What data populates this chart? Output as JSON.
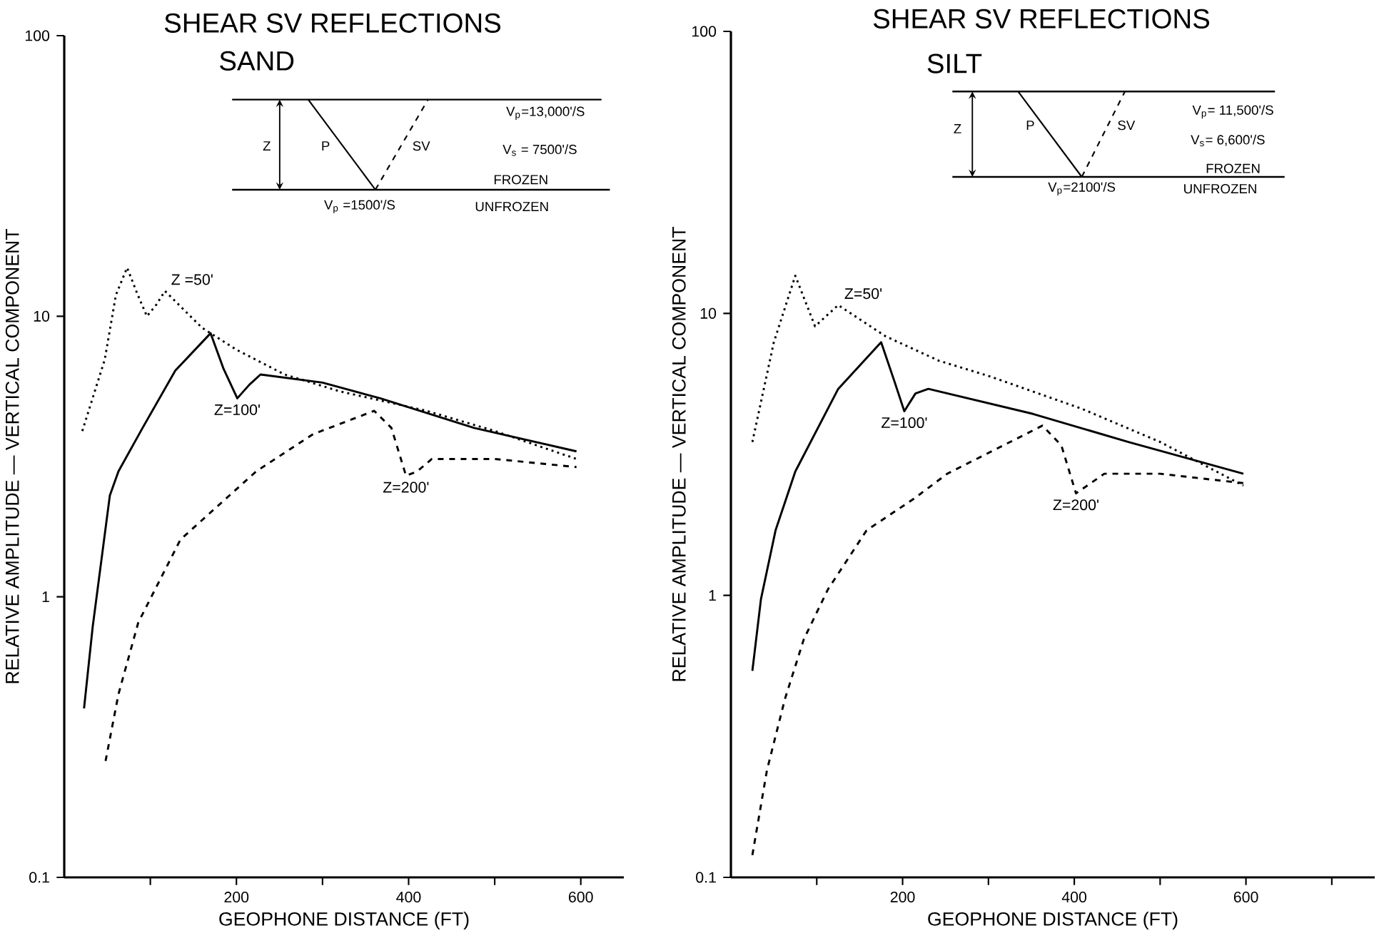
{
  "chart_data": [
    {
      "type": "line",
      "title": "SHEAR SV REFLECTIONS",
      "subtitle": "SAND",
      "xlabel": "GEOPHONE DISTANCE (FT)",
      "ylabel": "RELATIVE AMPLITUDE — VERTICAL COMPONENT",
      "log": "y",
      "xlim": [
        0,
        650
      ],
      "ylim": [
        0.1,
        100
      ],
      "xticks": [
        {
          "value": 100,
          "label": null
        },
        200,
        {
          "value": 300,
          "label": null
        },
        400,
        {
          "value": 500,
          "label": null
        },
        600
      ],
      "yticks": [
        0.1,
        1,
        10,
        100
      ],
      "series": [
        {
          "color": "#000000",
          "line_style": "dotted",
          "x": [
            21,
            47,
            60,
            73,
            85,
            96,
            107,
            117,
            160,
            200,
            256,
            320,
            421,
            500,
            595
          ],
          "values": [
            3.9,
            7,
            11.9,
            14.9,
            12,
            10,
            11,
            12.3,
            9.1,
            7.6,
            6.2,
            5.4,
            4.6,
            3.9,
            3.1
          ]
        },
        {
          "color": "#000000",
          "line_style": "solid",
          "x": [
            23,
            33,
            53,
            63,
            91,
            129,
            170,
            185,
            201,
            215,
            228,
            300,
            367,
            476,
            595
          ],
          "values": [
            0.4,
            0.78,
            2.3,
            2.8,
            4,
            6.4,
            8.7,
            6.5,
            5.1,
            5.7,
            6.2,
            5.8,
            5.1,
            4,
            3.3
          ]
        },
        {
          "color": "#000000",
          "line_style": "dashed",
          "x": [
            48,
            63,
            86,
            135,
            223,
            289,
            360,
            380,
            397,
            410,
            427,
            500,
            595
          ],
          "values": [
            0.26,
            0.45,
            0.81,
            1.6,
            2.8,
            3.8,
            4.6,
            4,
            2.7,
            2.8,
            3.1,
            3.1,
            2.9
          ]
        }
      ],
      "annotations": [
        "Z",
        "P",
        "SV",
        "V$_{p}$=13,000'/S",
        "V$_{s}$ = 7500'/S",
        "FROZEN",
        "UNFROZEN",
        "V$_{p}$ =1500'/S",
        {
          "text": "Z =50'",
          "x": 117,
          "y": 12.3
        },
        {
          "text": "Z=100'",
          "x": 201,
          "y": 5.1
        },
        {
          "text": "Z=200'",
          "x": 397,
          "y": 2.7
        }
      ]
    },
    {
      "type": "line",
      "title": "SHEAR SV REFLECTIONS",
      "subtitle": "SILT",
      "xlabel": "GEOPHONE DISTANCE (FT)",
      "ylabel": "RELATIVE AMPLITUDE — VERTICAL COMPONENT",
      "log": "y",
      "xlim": [
        0,
        750
      ],
      "ylim": [
        0.1,
        100
      ],
      "xticks": [
        {
          "value": 100,
          "label": null
        },
        200,
        {
          "value": 300,
          "label": null
        },
        400,
        {
          "value": 500,
          "label": null
        },
        600,
        {
          "value": 700,
          "label": null
        }
      ],
      "yticks": [
        0.1,
        1,
        10,
        100
      ],
      "series": [
        {
          "color": "#000000",
          "line_style": "dotted",
          "x": [
            25,
            50,
            75,
            98,
            125,
            180,
            242,
            300,
            408,
            500,
            597
          ],
          "values": [
            3.5,
            7.9,
            13.6,
            9,
            10.7,
            8.3,
            6.8,
            6,
            4.6,
            3.5,
            2.45
          ]
        },
        {
          "color": "#000000",
          "line_style": "solid",
          "x": [
            25,
            35,
            52,
            75,
            125,
            175,
            190,
            202,
            215,
            230,
            352,
            463,
            597
          ],
          "values": [
            0.54,
            0.97,
            1.7,
            2.75,
            5.4,
            7.9,
            5.8,
            4.5,
            5.2,
            5.4,
            4.4,
            3.5,
            2.7
          ]
        },
        {
          "color": "#000000",
          "line_style": "dashed",
          "x": [
            25,
            42,
            63,
            85,
            113,
            158,
            213,
            252,
            363,
            385,
            402,
            435,
            500,
            597
          ],
          "values": [
            0.12,
            0.24,
            0.43,
            0.7,
            1.05,
            1.7,
            2.2,
            2.7,
            4,
            3.4,
            2.3,
            2.7,
            2.7,
            2.5
          ]
        }
      ],
      "annotations": [
        "Z",
        "P",
        "SV",
        "V$_{p}$= 11,500'/S",
        "V$_{s}$= 6,600'/S",
        "FROZEN",
        "UNFROZEN",
        "V$_{p}$=2100'/S",
        {
          "text": "Z=50'",
          "x": 125,
          "y": 10.7
        },
        {
          "text": "Z=100'",
          "x": 202,
          "y": 4.5
        },
        {
          "text": "Z=200'",
          "x": 402,
          "y": 2.3
        }
      ]
    }
  ]
}
